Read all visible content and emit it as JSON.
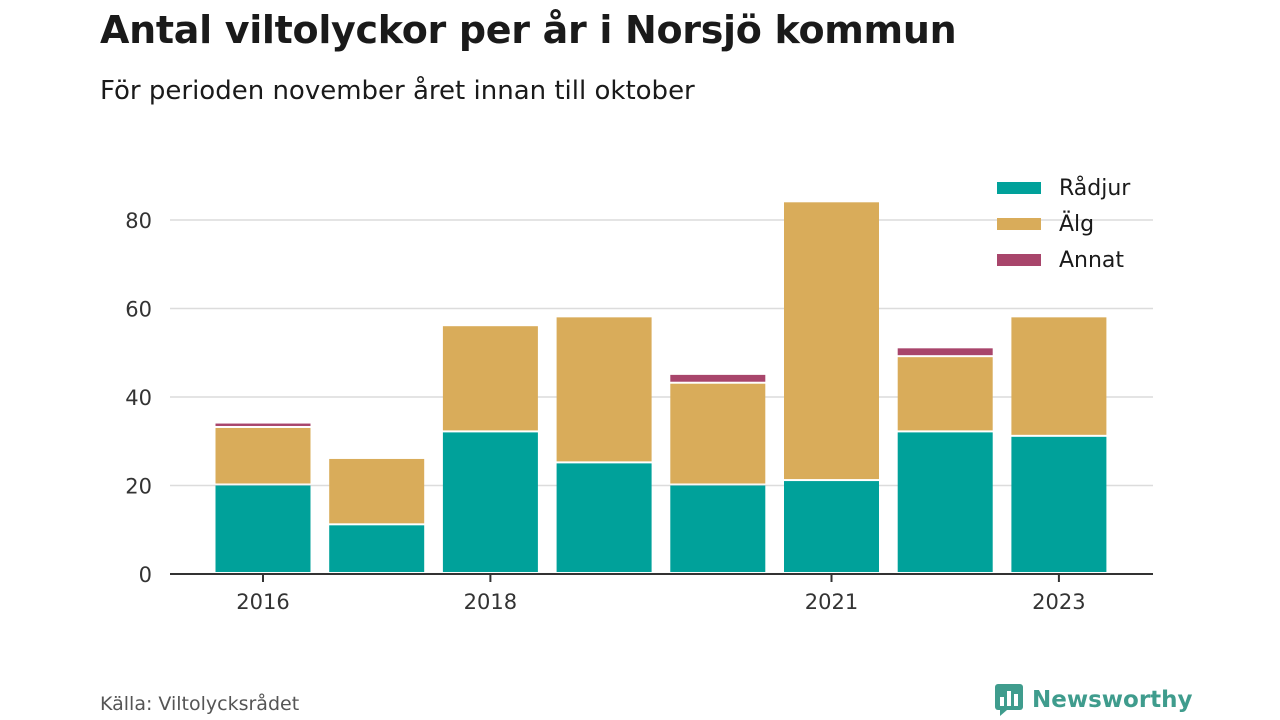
{
  "header": {
    "title": "Antal viltolyckor per år i Norsjö kommun",
    "subtitle": "För perioden november året innan till oktober"
  },
  "footer": {
    "source": "Källa: Viltolycksrådet",
    "brand": "Newsworthy"
  },
  "colors": {
    "radjur": "#00a19a",
    "alg": "#d9ac5a",
    "annat": "#a8456b",
    "brand": "#3f9c8d"
  },
  "chart_data": {
    "type": "bar",
    "stacked": true,
    "title": "Antal viltolyckor per år i Norsjö kommun",
    "subtitle": "För perioden november året innan till oktober",
    "xlabel": "",
    "ylabel": "",
    "x": [
      2016,
      2017,
      2018,
      2019,
      2020,
      2021,
      2022,
      2023
    ],
    "x_tick_labels": [
      {
        "x": 2016,
        "label": "2016"
      },
      {
        "x": 2018,
        "label": "2018"
      },
      {
        "x": 2021,
        "label": "2021"
      },
      {
        "x": 2023,
        "label": "2023"
      }
    ],
    "y_ticks": [
      {
        "value": 0,
        "label": "0"
      },
      {
        "value": 20,
        "label": "20"
      },
      {
        "value": 40,
        "label": "40"
      },
      {
        "value": 60,
        "label": "60"
      },
      {
        "value": 80,
        "label": "80"
      }
    ],
    "ylim": [
      0,
      88
    ],
    "grid": true,
    "legend_position": "top-right",
    "series": [
      {
        "name": "Rådjur",
        "color": "#00a19a",
        "values": [
          20,
          11,
          32,
          25,
          20,
          21,
          32,
          31
        ]
      },
      {
        "name": "Älg",
        "color": "#d9ac5a",
        "values": [
          13,
          15,
          24,
          33,
          23,
          63,
          17,
          27
        ]
      },
      {
        "name": "Annat",
        "color": "#a8456b",
        "values": [
          1,
          0,
          0,
          0,
          2,
          0,
          2,
          0
        ]
      }
    ]
  }
}
